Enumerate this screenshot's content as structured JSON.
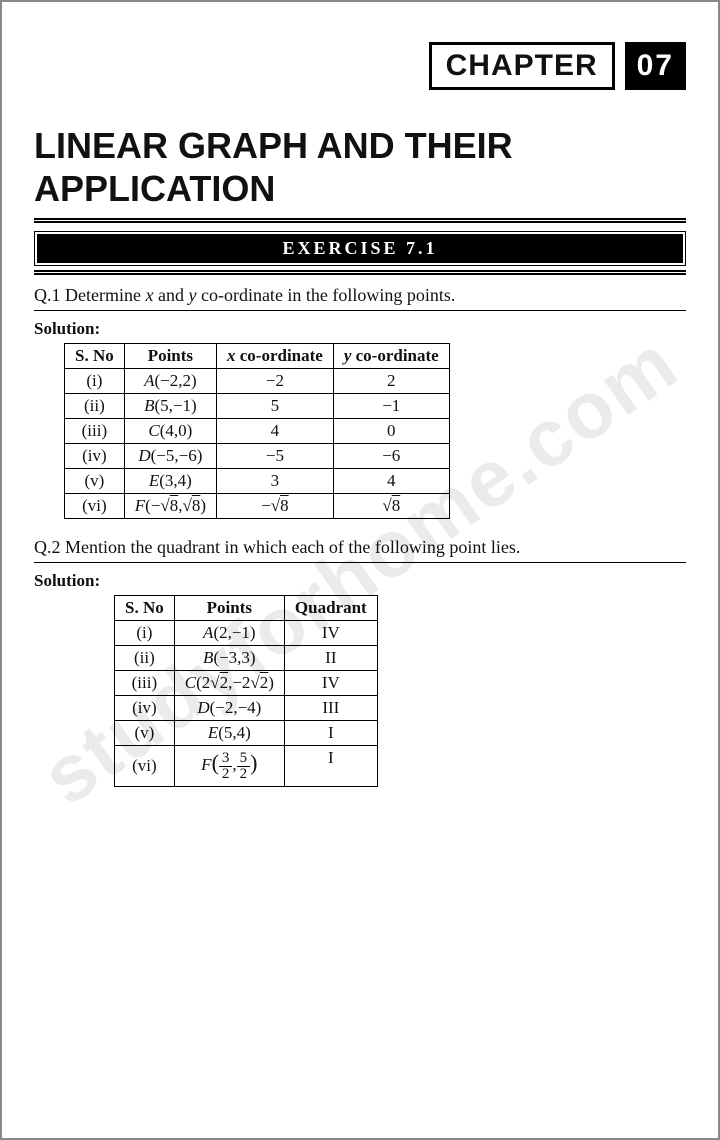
{
  "chapter": {
    "label": "CHAPTER",
    "number": "07"
  },
  "title": "LINEAR GRAPH AND THEIR APPLICATION",
  "exercise": "EXERCISE 7.1",
  "watermark": "studyforhome.com",
  "q1": {
    "text_a": "Q.1 Determine ",
    "var1": "x",
    "text_b": " and ",
    "var2": "y",
    "text_c": " co-ordinate in the following points.",
    "solution_label": "Solution:",
    "headers": {
      "c1": "S. No",
      "c2": "Points",
      "c3_var": "x",
      "c3": " co-ordinate",
      "c4_var": "y",
      "c4": " co-ordinate"
    },
    "rows": [
      {
        "sn": "(i)",
        "pt_label": "A",
        "pt_args": "(−2,2)",
        "x": "−2",
        "y": "2"
      },
      {
        "sn": "(ii)",
        "pt_label": "B",
        "pt_args": "(5,−1)",
        "x": "5",
        "y": "−1"
      },
      {
        "sn": "(iii)",
        "pt_label": "C",
        "pt_args": "(4,0)",
        "x": "4",
        "y": "0"
      },
      {
        "sn": "(iv)",
        "pt_label": "D",
        "pt_args": "(−5,−6)",
        "x": "−5",
        "y": "−6"
      },
      {
        "sn": "(v)",
        "pt_label": "E",
        "pt_args": "(3,4)",
        "x": "3",
        "y": "4"
      }
    ],
    "row6": {
      "sn": "(vi)",
      "pt_label": "F",
      "sqrt_arg": "8"
    }
  },
  "q2": {
    "text": "Q.2 Mention the quadrant in which each of the following point lies.",
    "solution_label": "Solution:",
    "headers": {
      "c1": "S. No",
      "c2": "Points",
      "c3": "Quadrant"
    },
    "rows": [
      {
        "sn": "(i)",
        "pt_label": "A",
        "pt_args": "(2,−1)",
        "q": "IV"
      },
      {
        "sn": "(ii)",
        "pt_label": "B",
        "pt_args": "(−3,3)",
        "q": "II"
      }
    ],
    "row3": {
      "sn": "(iii)",
      "pt_label": "C",
      "sqrt_arg": "2",
      "q": "IV"
    },
    "rows2": [
      {
        "sn": "(iv)",
        "pt_label": "D",
        "pt_args": "(−2,−4)",
        "q": "III"
      },
      {
        "sn": "(v)",
        "pt_label": "E",
        "pt_args": "(5,4)",
        "q": "I"
      }
    ],
    "row6": {
      "sn": "(vi)",
      "pt_label": "F",
      "n1": "3",
      "d1": "2",
      "n2": "5",
      "d2": "2",
      "q": "I"
    }
  }
}
